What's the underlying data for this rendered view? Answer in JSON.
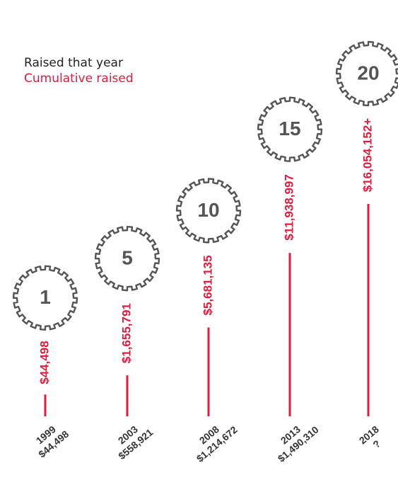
{
  "colors": {
    "accent": "#e21b3c",
    "gear": "#555555",
    "text": "#333333"
  },
  "legend": {
    "year_label": "Raised that year",
    "cumulative_label": "Cumulative raised"
  },
  "chart_data": {
    "type": "bar",
    "legend_position": "top-left",
    "grid": false,
    "categories": [
      "1999",
      "2003",
      "2008",
      "2013",
      "2018"
    ],
    "milestones": [
      "1",
      "5",
      "10",
      "15",
      "20"
    ],
    "series": [
      {
        "name": "Raised that year",
        "labels": [
          "$44,498",
          "$558,921",
          "$1,214,672",
          "$1,490,310",
          "?"
        ]
      },
      {
        "name": "Cumulative raised",
        "values": [
          44498,
          1655791,
          5681135,
          11938997,
          16054152
        ],
        "labels": [
          "$44,498",
          "$1,655,791",
          "$5,681,135",
          "$11,938,997",
          "$16,054,152+"
        ]
      }
    ]
  }
}
